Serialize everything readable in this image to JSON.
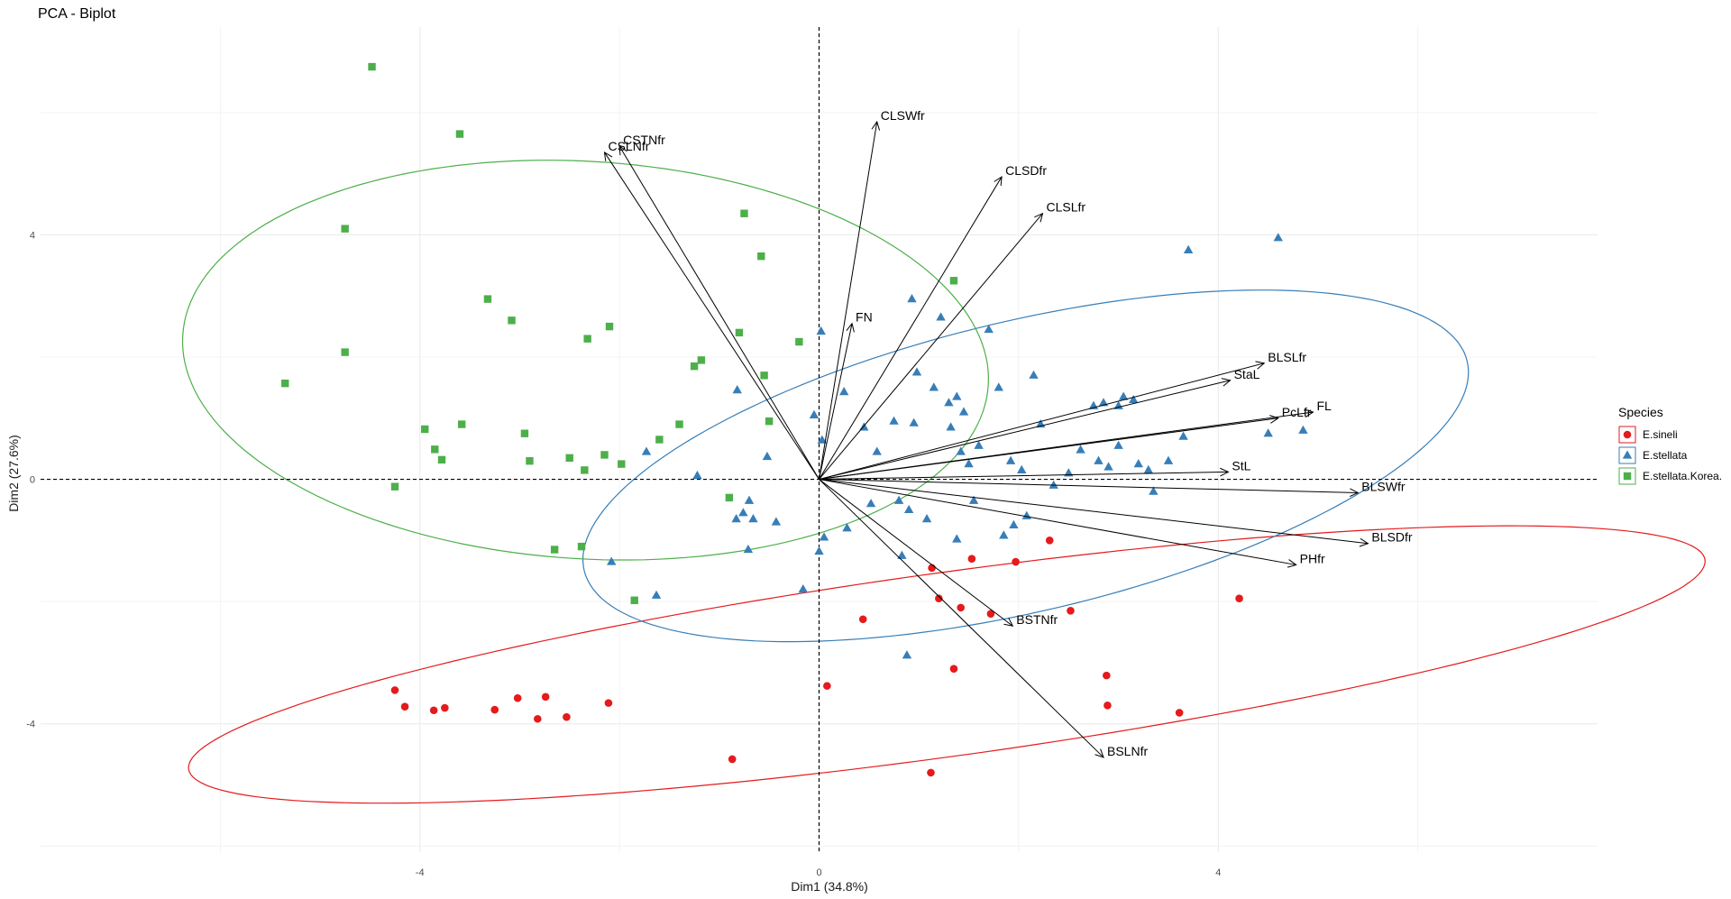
{
  "chart_data": {
    "type": "scatter",
    "subtype": "pca-biplot",
    "title": "PCA - Biplot",
    "xlabel": "Dim1 (34.8%)",
    "ylabel": "Dim2 (27.6%)",
    "xlim": [
      -7.8,
      7.8
    ],
    "ylim": [
      -6.1,
      7.4
    ],
    "x_ticks": [
      -4,
      0,
      4
    ],
    "y_ticks": [
      -4,
      0,
      4
    ],
    "grid": true,
    "legend": {
      "title": "Species",
      "position": "right",
      "entries": [
        "E.sineli",
        "E.stellata",
        "E.stellata.Korea."
      ]
    },
    "series": [
      {
        "name": "E.sineli",
        "color": "#e41a1c",
        "marker": "circle",
        "points": [
          [
            -4.25,
            -3.45
          ],
          [
            -4.15,
            -3.72
          ],
          [
            -3.86,
            -3.78
          ],
          [
            -3.75,
            -3.74
          ],
          [
            -3.25,
            -3.77
          ],
          [
            -3.02,
            -3.58
          ],
          [
            -2.82,
            -3.92
          ],
          [
            -2.74,
            -3.56
          ],
          [
            -2.53,
            -3.89
          ],
          [
            -2.11,
            -3.66
          ],
          [
            -0.87,
            -4.58
          ],
          [
            0.08,
            -3.38
          ],
          [
            0.44,
            -2.29
          ],
          [
            1.13,
            -1.45
          ],
          [
            1.2,
            -1.95
          ],
          [
            1.53,
            -1.3
          ],
          [
            1.42,
            -2.1
          ],
          [
            1.72,
            -2.2
          ],
          [
            1.97,
            -1.35
          ],
          [
            2.31,
            -1.0
          ],
          [
            2.52,
            -2.15
          ],
          [
            2.88,
            -3.21
          ],
          [
            2.89,
            -3.7
          ],
          [
            3.61,
            -3.82
          ],
          [
            4.21,
            -1.95
          ],
          [
            1.12,
            -4.8
          ],
          [
            1.35,
            -3.1
          ]
        ]
      },
      {
        "name": "E.stellata",
        "color": "#377eb8",
        "marker": "triangle",
        "points": [
          [
            -2.08,
            -1.35
          ],
          [
            -1.63,
            -1.9
          ],
          [
            -1.73,
            0.45
          ],
          [
            -1.22,
            0.06
          ],
          [
            -0.82,
            1.46
          ],
          [
            -0.83,
            -0.65
          ],
          [
            -0.76,
            -0.55
          ],
          [
            -0.66,
            -0.65
          ],
          [
            -0.71,
            -1.15
          ],
          [
            -0.7,
            -0.35
          ],
          [
            -0.52,
            0.37
          ],
          [
            -0.43,
            -0.7
          ],
          [
            -0.16,
            -1.8
          ],
          [
            0.0,
            -1.18
          ],
          [
            0.05,
            -0.95
          ],
          [
            -0.05,
            1.05
          ],
          [
            0.03,
            0.64
          ],
          [
            0.02,
            2.42
          ],
          [
            0.25,
            1.43
          ],
          [
            0.28,
            -0.8
          ],
          [
            0.45,
            0.85
          ],
          [
            0.52,
            -0.4
          ],
          [
            0.58,
            0.45
          ],
          [
            0.75,
            0.95
          ],
          [
            0.8,
            -0.35
          ],
          [
            0.83,
            -1.25
          ],
          [
            0.9,
            -0.5
          ],
          [
            0.88,
            -2.88
          ],
          [
            0.93,
            2.95
          ],
          [
            0.98,
            1.75
          ],
          [
            0.95,
            0.92
          ],
          [
            1.08,
            -0.65
          ],
          [
            1.15,
            1.5
          ],
          [
            1.3,
            1.25
          ],
          [
            1.22,
            2.65
          ],
          [
            1.32,
            0.85
          ],
          [
            1.38,
            1.35
          ],
          [
            1.42,
            0.45
          ],
          [
            1.5,
            0.25
          ],
          [
            1.38,
            -0.98
          ],
          [
            1.45,
            1.1
          ],
          [
            1.55,
            -0.35
          ],
          [
            1.6,
            0.55
          ],
          [
            1.7,
            2.45
          ],
          [
            1.8,
            1.5
          ],
          [
            1.85,
            -0.92
          ],
          [
            1.95,
            -0.75
          ],
          [
            2.08,
            -0.6
          ],
          [
            1.92,
            0.3
          ],
          [
            2.03,
            0.15
          ],
          [
            2.15,
            1.7
          ],
          [
            2.22,
            0.9
          ],
          [
            2.35,
            -0.1
          ],
          [
            2.5,
            0.1
          ],
          [
            2.62,
            0.48
          ],
          [
            2.8,
            0.3
          ],
          [
            2.9,
            0.2
          ],
          [
            3.0,
            0.55
          ],
          [
            2.75,
            1.2
          ],
          [
            2.85,
            1.25
          ],
          [
            3.05,
            1.35
          ],
          [
            3.15,
            1.3
          ],
          [
            3.0,
            1.2
          ],
          [
            3.2,
            0.25
          ],
          [
            3.3,
            0.15
          ],
          [
            3.35,
            -0.2
          ],
          [
            3.5,
            0.3
          ],
          [
            3.65,
            0.7
          ],
          [
            3.7,
            3.75
          ],
          [
            4.5,
            0.75
          ],
          [
            4.85,
            0.8
          ],
          [
            4.6,
            3.95
          ]
        ]
      },
      {
        "name": "E.stellata.Korea.",
        "color": "#4daf4a",
        "marker": "square",
        "points": [
          [
            -5.35,
            1.57
          ],
          [
            -4.75,
            4.1
          ],
          [
            -4.75,
            2.08
          ],
          [
            -4.48,
            6.75
          ],
          [
            -4.25,
            -0.12
          ],
          [
            -3.95,
            0.82
          ],
          [
            -3.85,
            0.49
          ],
          [
            -3.78,
            0.32
          ],
          [
            -3.58,
            0.9
          ],
          [
            -3.6,
            5.65
          ],
          [
            -3.32,
            2.95
          ],
          [
            -3.08,
            2.6
          ],
          [
            -2.95,
            0.75
          ],
          [
            -2.9,
            0.3
          ],
          [
            -2.65,
            -1.15
          ],
          [
            -2.5,
            0.35
          ],
          [
            -2.38,
            -1.1
          ],
          [
            -2.32,
            2.3
          ],
          [
            -2.35,
            0.15
          ],
          [
            -2.15,
            0.4
          ],
          [
            -2.1,
            2.5
          ],
          [
            -1.98,
            0.25
          ],
          [
            -1.85,
            -1.98
          ],
          [
            -1.6,
            0.65
          ],
          [
            -1.4,
            0.9
          ],
          [
            -1.25,
            1.85
          ],
          [
            -1.18,
            1.95
          ],
          [
            -0.9,
            -0.3
          ],
          [
            -0.8,
            2.4
          ],
          [
            -0.75,
            4.35
          ],
          [
            -0.58,
            3.65
          ],
          [
            -0.55,
            1.7
          ],
          [
            -0.5,
            0.95
          ],
          [
            -0.2,
            2.25
          ],
          [
            1.35,
            3.25
          ]
        ]
      }
    ],
    "ellipses": [
      {
        "series": "E.sineli",
        "center": [
          1.28,
          -3.03
        ],
        "semi_major": 7.79,
        "semi_minor": 1.48,
        "angle_deg": 13.0
      },
      {
        "series": "E.stellata",
        "center": [
          2.07,
          0.22
        ],
        "semi_major": 4.78,
        "semi_minor": 2.26,
        "angle_deg": 25.0
      },
      {
        "series": "E.stellata.Korea.",
        "center": [
          -2.34,
          1.95
        ],
        "semi_major": 4.07,
        "semi_minor": 3.23,
        "angle_deg": 168.0
      }
    ],
    "variables": [
      {
        "name": "CSTNfr",
        "x": -2.0,
        "y": 5.45
      },
      {
        "name": "CSLNfr",
        "x": -2.15,
        "y": 5.35
      },
      {
        "name": "CLSWfr",
        "x": 0.58,
        "y": 5.85
      },
      {
        "name": "CLSDfr",
        "x": 1.83,
        "y": 4.95
      },
      {
        "name": "CLSLfr",
        "x": 2.24,
        "y": 4.35
      },
      {
        "name": "FN",
        "x": 0.33,
        "y": 2.55
      },
      {
        "name": "BLSLfr",
        "x": 4.46,
        "y": 1.9
      },
      {
        "name": "StaL",
        "x": 4.12,
        "y": 1.62
      },
      {
        "name": "FL",
        "x": 4.95,
        "y": 1.1
      },
      {
        "name": "PcLfr",
        "x": 4.6,
        "y": 1.0
      },
      {
        "name": "StL",
        "x": 4.1,
        "y": 0.12
      },
      {
        "name": "BLSWfr",
        "x": 5.4,
        "y": -0.22
      },
      {
        "name": "BLSDfr",
        "x": 5.5,
        "y": -1.05
      },
      {
        "name": "PHfr",
        "x": 4.78,
        "y": -1.4
      },
      {
        "name": "BSTNfr",
        "x": 1.94,
        "y": -2.4
      },
      {
        "name": "BSLNfr",
        "x": 2.85,
        "y": -4.55
      }
    ]
  }
}
